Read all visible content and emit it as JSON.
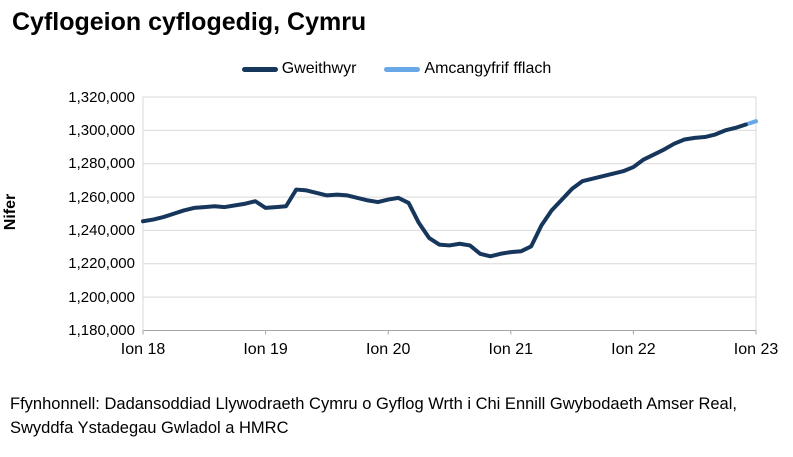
{
  "title": "Cyflogeion cyflogedig, Cymru",
  "legend": {
    "items": [
      {
        "label": "Gweithwyr",
        "color": "#16365C"
      },
      {
        "label": "Amcangyfrif fflach",
        "color": "#69A8E6"
      }
    ]
  },
  "footer": {
    "text": "Ffynhonnell: Dadansoddiad Llywodraeth Cymru o Gyflog Wrth i Chi Ennill Gwybodaeth Amser Real, Swyddfa Ystadegau Gwladol a HMRC"
  },
  "chart_data": {
    "type": "line",
    "title": "Cyflogeion cyflogedig, Cymru",
    "xlabel": "",
    "ylabel": "Nifer",
    "ylim": [
      1180000,
      1320000
    ],
    "y_ticks": [
      1320000,
      1300000,
      1280000,
      1260000,
      1240000,
      1220000,
      1200000,
      1180000
    ],
    "x_tick_labels": [
      "Ion 18",
      "Ion 19",
      "Ion 20",
      "Ion 21",
      "Ion 22",
      "Ion 23"
    ],
    "grid": "horizontal",
    "legend_position": "top",
    "x_start": "Ion 2018",
    "x_end": "Ion 2023",
    "x_frequency": "misol",
    "series": [
      {
        "name": "Gweithwyr",
        "color": "#16365C",
        "values": [
          1245500,
          1246500,
          1248000,
          1250000,
          1252000,
          1253500,
          1254000,
          1254500,
          1254000,
          1255000,
          1256000,
          1257500,
          1253500,
          1254000,
          1254500,
          1264500,
          1264000,
          1262500,
          1261000,
          1261500,
          1261000,
          1259500,
          1258000,
          1257000,
          1258500,
          1259500,
          1256500,
          1244500,
          1235500,
          1231500,
          1231000,
          1232000,
          1231000,
          1226000,
          1224500,
          1226000,
          1227000,
          1227500,
          1230500,
          1243000,
          1252000,
          1258500,
          1265000,
          1269500,
          1271000,
          1272500,
          1274000,
          1275500,
          1278000,
          1282500,
          1285500,
          1288500,
          1292000,
          1294500,
          1295500,
          1296000,
          1297500,
          1300000,
          1301500,
          1303500
        ]
      },
      {
        "name": "Amcangyfrif fflach",
        "color": "#69A8E6",
        "note": "segment olaf: Rhag 2022 i Ion 2023",
        "values": [
          1303500,
          1305500
        ]
      }
    ]
  },
  "colors": {
    "gridline": "#d9d9d9",
    "axis": "#a6a6a6",
    "text": "#000000"
  }
}
